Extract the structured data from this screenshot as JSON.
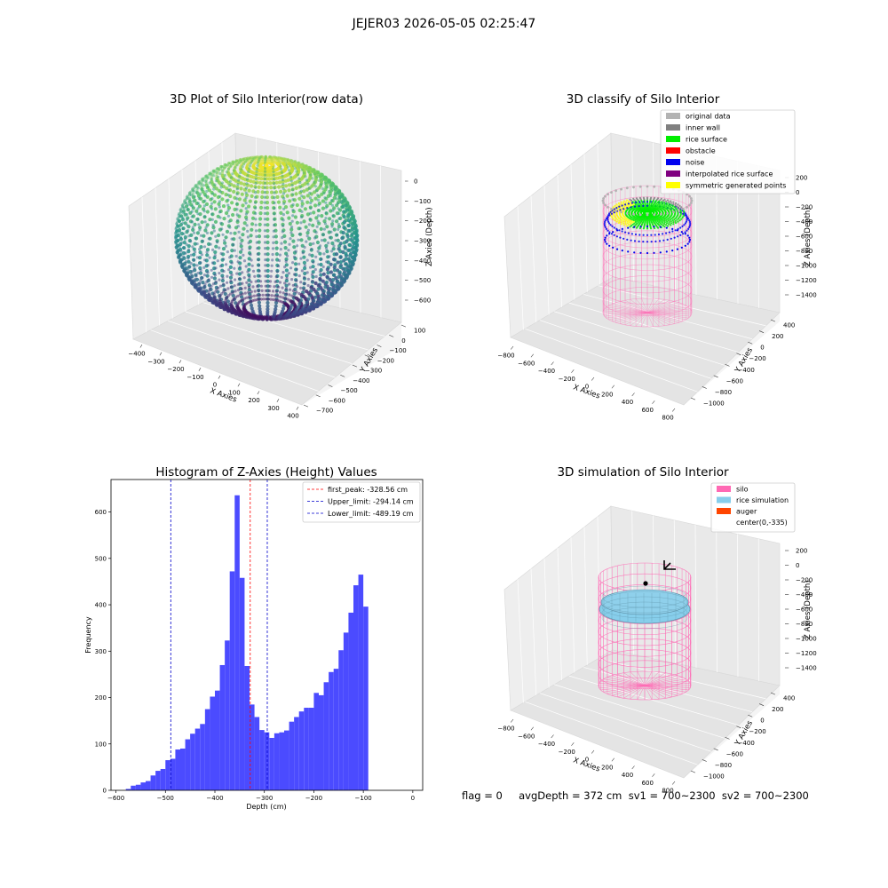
{
  "figure_title": "JEJER03 2026-05-05 02:25:47",
  "panels": {
    "raw": {
      "title": "3D Plot of Silo Interior(row data)",
      "xlabel": "X Axies",
      "ylabel": "Y Axies",
      "zlabel": "Z Axies (Depth)",
      "xticks": [
        "−400",
        "−300",
        "−200",
        "−100",
        "0",
        "100",
        "200",
        "300",
        "400"
      ],
      "yticks": [
        "100",
        "0",
        "−100",
        "−200",
        "−300",
        "−400",
        "−500",
        "−600",
        "−700"
      ],
      "zticks": [
        "0",
        "−100",
        "−200",
        "−300",
        "−400",
        "−500",
        "−600"
      ]
    },
    "classify": {
      "title": "3D classify of Silo Interior",
      "xlabel": "X Axies",
      "ylabel": "Y Axies",
      "zlabel": "Z Axies (Depth)",
      "xticks": [
        "−800",
        "−600",
        "−400",
        "−200",
        "0",
        "200",
        "400",
        "600",
        "800"
      ],
      "yticks": [
        "400",
        "200",
        "0",
        "−200",
        "−400",
        "−600",
        "−800",
        "−1000"
      ],
      "zticks": [
        "200",
        "0",
        "−200",
        "−400",
        "−600",
        "−800",
        "−1000",
        "−1200",
        "−1400"
      ],
      "legend": [
        {
          "label": "original data",
          "color": "#b3b3b3"
        },
        {
          "label": "inner wall",
          "color": "#808080"
        },
        {
          "label": "rice surface",
          "color": "#00ee00"
        },
        {
          "label": "obstacle",
          "color": "#ff0000"
        },
        {
          "label": "noise",
          "color": "#0000ee"
        },
        {
          "label": "interpolated rice surface",
          "color": "#800080"
        },
        {
          "label": "symmetric generated points",
          "color": "#ffff00"
        }
      ]
    },
    "simulation": {
      "title": "3D simulation of Silo Interior",
      "xlabel": "X Axies",
      "ylabel": "Y Axies",
      "zlabel": "Z Axies (Depth)",
      "xticks": [
        "−800",
        "−600",
        "−400",
        "−200",
        "0",
        "200",
        "400",
        "600",
        "800"
      ],
      "yticks": [
        "400",
        "200",
        "0",
        "−200",
        "−400",
        "−600",
        "−800",
        "−1000"
      ],
      "zticks": [
        "200",
        "0",
        "−200",
        "−400",
        "−600",
        "−800",
        "−1000",
        "−1200",
        "−1400"
      ],
      "legend": [
        {
          "label": "silo",
          "color": "#ff69b4"
        },
        {
          "label": "rice simulation",
          "color": "#87ceeb"
        },
        {
          "label": "auger",
          "color": "#ff4500"
        },
        {
          "label": "center(0,-335)",
          "color": "none"
        }
      ]
    }
  },
  "status_line": "flag = 0     avgDepth = 372 cm  sv1 = 700~2300  sv2 = 700~2300",
  "chart_data": {
    "type": "bar",
    "title": "Histogram of Z-Axies (Height) Values",
    "xlabel": "Depth (cm)",
    "ylabel": "Frequency",
    "xlim": [
      -610,
      20
    ],
    "ylim": [
      0,
      670
    ],
    "xticks": [
      -600,
      -500,
      -400,
      -300,
      -200,
      -100,
      0
    ],
    "yticks": [
      0,
      100,
      200,
      300,
      400,
      500,
      600
    ],
    "bar_color": "#4b4bff",
    "bin_start": -580,
    "bin_width": 10,
    "values": [
      3,
      10,
      12,
      17,
      20,
      32,
      42,
      46,
      65,
      68,
      88,
      90,
      110,
      122,
      133,
      143,
      175,
      202,
      215,
      270,
      323,
      472,
      636,
      458,
      268,
      185,
      158,
      130,
      125,
      113,
      123,
      125,
      129,
      148,
      158,
      170,
      178,
      178,
      210,
      205,
      233,
      255,
      262,
      302,
      340,
      383,
      442,
      465,
      396
    ],
    "vlines": [
      {
        "label": "first_peak: -328.56 cm",
        "x": -328.56,
        "color": "#ff0000"
      },
      {
        "label": "Upper_limit: -294.14 cm",
        "x": -294.14,
        "color": "#0000cc"
      },
      {
        "label": "Lower_limit: -489.19 cm",
        "x": -489.19,
        "color": "#0000cc"
      }
    ],
    "grid": false,
    "legend_position": "top-right"
  }
}
